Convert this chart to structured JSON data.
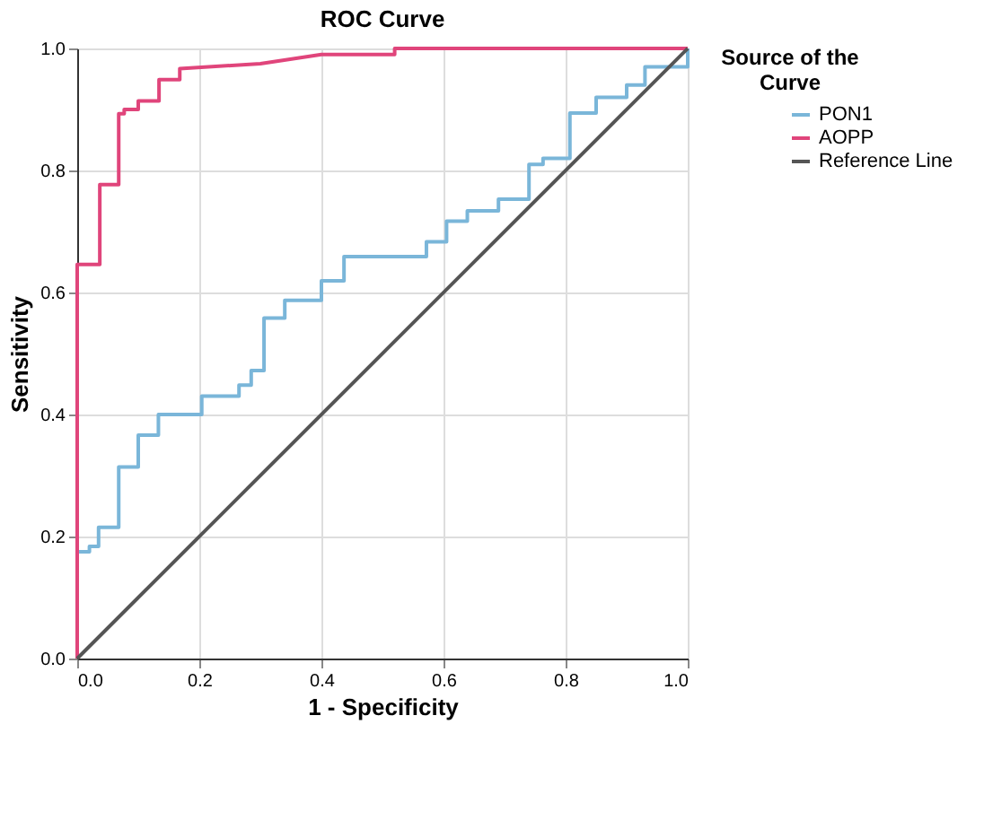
{
  "chart_data": {
    "type": "line",
    "title": "ROC Curve",
    "xlabel": "1 - Specificity",
    "ylabel": "Sensitivity",
    "legend_title": "Source of the Curve",
    "series": [
      {
        "name": "PON1",
        "color": "#7ab6d9",
        "x": [
          0,
          0,
          0.02,
          0.02,
          0.035,
          0.035,
          0.068,
          0.068,
          0.1,
          0.1,
          0.133,
          0.133,
          0.204,
          0.204,
          0.265,
          0.265,
          0.285,
          0.285,
          0.306,
          0.306,
          0.34,
          0.34,
          0.4,
          0.4,
          0.437,
          0.437,
          0.572,
          0.572,
          0.605,
          0.605,
          0.639,
          0.639,
          0.69,
          0.69,
          0.74,
          0.74,
          0.763,
          0.763,
          0.807,
          0.807,
          0.85,
          0.85,
          0.9,
          0.9,
          0.93,
          0.93,
          1.0,
          1.0
        ],
        "values": [
          0,
          0.175,
          0.175,
          0.184,
          0.184,
          0.215,
          0.215,
          0.314,
          0.314,
          0.366,
          0.366,
          0.4,
          0.4,
          0.43,
          0.43,
          0.448,
          0.448,
          0.472,
          0.472,
          0.558,
          0.558,
          0.587,
          0.587,
          0.619,
          0.619,
          0.659,
          0.659,
          0.683,
          0.683,
          0.717,
          0.717,
          0.734,
          0.734,
          0.753,
          0.753,
          0.81,
          0.81,
          0.82,
          0.82,
          0.894,
          0.894,
          0.92,
          0.92,
          0.94,
          0.94,
          0.97,
          0.97,
          1.0
        ]
      },
      {
        "name": "AOPP",
        "color": "#e0457b",
        "x": [
          0,
          0,
          0.037,
          0.037,
          0.068,
          0.068,
          0.077,
          0.077,
          0.1,
          0.1,
          0.134,
          0.134,
          0.168,
          0.168,
          0.3,
          0.4,
          0.52,
          0.52,
          1.0
        ],
        "values": [
          0,
          0.646,
          0.646,
          0.777,
          0.777,
          0.893,
          0.893,
          0.9,
          0.9,
          0.914,
          0.914,
          0.949,
          0.949,
          0.967,
          0.975,
          0.99,
          0.99,
          1.0,
          1.0
        ]
      },
      {
        "name": "Reference Line",
        "color": "#555555",
        "x": [
          0,
          1
        ],
        "values": [
          0,
          1
        ]
      }
    ],
    "xlim": [
      0,
      1
    ],
    "ylim": [
      0,
      1
    ],
    "xticks": [
      {
        "value": 0,
        "label": "0.0"
      },
      {
        "value": 0.2,
        "label": "0.2"
      },
      {
        "value": 0.4,
        "label": "0.4"
      },
      {
        "value": 0.6,
        "label": "0.6"
      },
      {
        "value": 0.8,
        "label": "0.8"
      },
      {
        "value": 1,
        "label": "1.0"
      }
    ],
    "yticks": [
      {
        "value": 0,
        "label": "0.0"
      },
      {
        "value": 0.2,
        "label": "0.2"
      },
      {
        "value": 0.4,
        "label": "0.4"
      },
      {
        "value": 0.6,
        "label": "0.6"
      },
      {
        "value": 0.8,
        "label": "0.8"
      },
      {
        "value": 1,
        "label": "1.0"
      }
    ],
    "grid": true,
    "legend": "top right"
  }
}
